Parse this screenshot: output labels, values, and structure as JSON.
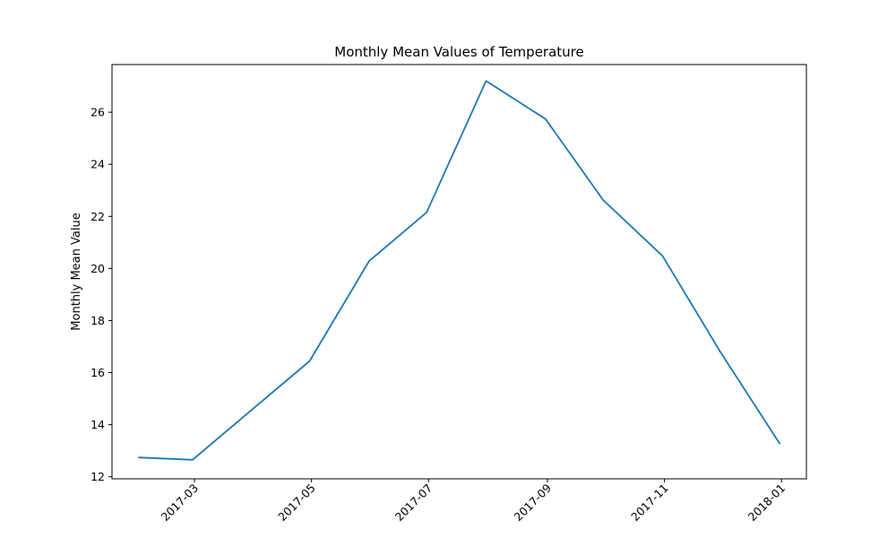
{
  "chart_data": {
    "type": "line",
    "title": "Monthly Mean Values of Temperature",
    "xlabel": "",
    "ylabel": "Monthly Mean Value",
    "x": [
      "2017-01-31",
      "2017-02-28",
      "2017-03-31",
      "2017-04-30",
      "2017-05-31",
      "2017-06-30",
      "2017-07-31",
      "2017-08-31",
      "2017-09-30",
      "2017-10-31",
      "2017-11-30",
      "2017-12-31"
    ],
    "series": [
      {
        "values": [
          12.74,
          12.65,
          14.58,
          16.44,
          20.28,
          22.15,
          27.2,
          25.74,
          22.63,
          20.48,
          16.81,
          13.28
        ],
        "color": "#1f77b4"
      }
    ],
    "xlim": [
      "2017-01-17",
      "2018-01-14"
    ],
    "ylim": [
      11.92,
      27.83
    ],
    "x_ticks": [
      "2017-03",
      "2017-05",
      "2017-07",
      "2017-09",
      "2017-11",
      "2018-01"
    ],
    "y_ticks": [
      "12",
      "14",
      "16",
      "18",
      "20",
      "22",
      "24",
      "26"
    ],
    "grid": false,
    "legend": "none"
  }
}
